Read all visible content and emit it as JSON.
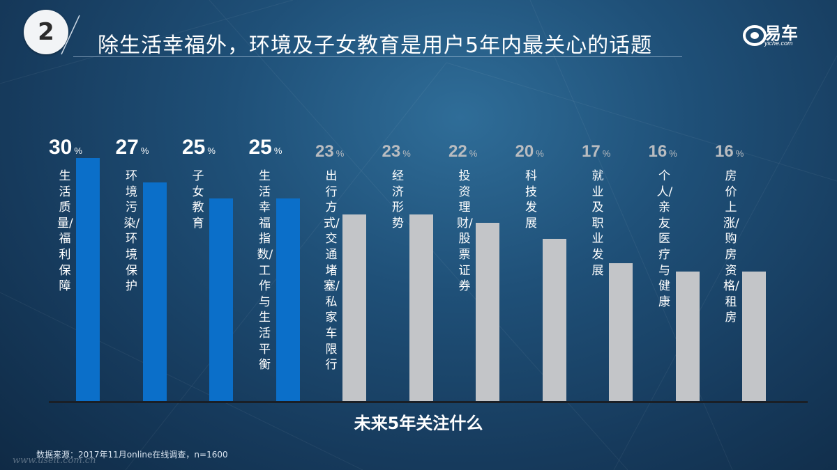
{
  "header": {
    "badge_number": "2",
    "title": "除生活幸福外，环境及子女教育是用户5年内最关心的话题",
    "logo_text": "易车",
    "logo_sub": "yiche.com"
  },
  "colors": {
    "highlight_bar": "#0b6fc9",
    "normal_bar": "#c3c5c8",
    "highlight_value": "#ffffff",
    "normal_value": "#b9bcc0"
  },
  "chart_data": {
    "type": "bar",
    "xlabel": "未来5年关注什么",
    "unit": "%",
    "categories": [
      "生活质量/福利保障",
      "环境污染/环境保护",
      "子女教育",
      "生活幸福指数/工作与生活平衡",
      "出行方式/交通堵塞/私家车限行",
      "经济形势",
      "投资理财/股票证券",
      "科技发展",
      "就业及职业发展",
      "个人/亲友医疗与健康",
      "房价上涨/购房资格/租房"
    ],
    "values": [
      30,
      27,
      25,
      25,
      23,
      23,
      22,
      20,
      17,
      16,
      16
    ],
    "highlighted": [
      true,
      true,
      true,
      true,
      false,
      false,
      false,
      false,
      false,
      false,
      false
    ],
    "ylim": [
      0,
      30
    ]
  },
  "footer": {
    "source": "数据来源：2017年11月online在线调查，n=1600",
    "watermark": "www.useit.com.cn"
  }
}
